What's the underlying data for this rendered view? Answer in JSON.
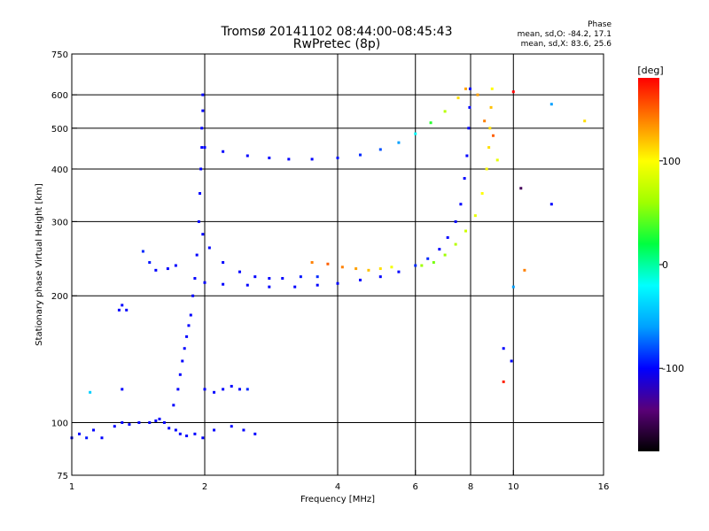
{
  "chart_data": {
    "type": "scatter",
    "title": "Tromsø 20141102 08:44:00-08:45:43",
    "subtitle": "RwPretec (8p)",
    "xlabel": "Frequency [MHz]",
    "ylabel": "Stationary phase Virtual Height [km]",
    "x_scale": "log",
    "y_scale": "log",
    "xlim": [
      1,
      16
    ],
    "ylim": [
      75,
      750
    ],
    "x_ticks": [
      1,
      2,
      4,
      6,
      8,
      10,
      16
    ],
    "x_tick_labels": [
      "1",
      "2",
      "4",
      "6",
      "8",
      "10",
      "16"
    ],
    "y_ticks": [
      75,
      100,
      200,
      300,
      400,
      500,
      600,
      750
    ],
    "y_tick_labels": [
      "75",
      "100",
      "200",
      "300",
      "400",
      "500",
      "600",
      "750"
    ],
    "grid": true,
    "stats": {
      "heading": "Phase",
      "o_line": "mean, sd,O: -84.2, 17.1",
      "x_line": "mean, sd,X: 83.6, 25.6"
    },
    "colorbar": {
      "label": "[deg]",
      "range": [
        -180,
        180
      ],
      "ticks": [
        100,
        0,
        -100
      ],
      "tick_labels": [
        "100",
        "0",
        "-100"
      ],
      "colors": [
        "#000000",
        "#5a0078",
        "#0000ff",
        "#00a0ff",
        "#00ffff",
        "#00ff40",
        "#a0ff00",
        "#ffff00",
        "#ff8000",
        "#ff0000"
      ]
    },
    "series": [
      {
        "points": [
          [
            1.0,
            92,
            -100
          ],
          [
            1.04,
            94,
            -100
          ],
          [
            1.08,
            92,
            -95
          ],
          [
            1.12,
            96,
            -100
          ],
          [
            1.17,
            92,
            -100
          ],
          [
            1.25,
            98,
            -100
          ],
          [
            1.3,
            100,
            -100
          ],
          [
            1.35,
            99,
            -100
          ],
          [
            1.42,
            100,
            -100
          ],
          [
            1.5,
            100,
            -100
          ],
          [
            1.55,
            101,
            -100
          ],
          [
            1.58,
            102,
            -100
          ],
          [
            1.62,
            100,
            -100
          ],
          [
            1.66,
            97,
            -100
          ],
          [
            1.72,
            96,
            -100
          ],
          [
            1.76,
            94,
            -100
          ],
          [
            1.82,
            93,
            -100
          ],
          [
            1.9,
            94,
            -100
          ],
          [
            1.98,
            92,
            -100
          ],
          [
            2.1,
            96,
            -100
          ],
          [
            2.3,
            98,
            -100
          ],
          [
            2.45,
            96,
            -100
          ],
          [
            2.6,
            94,
            -100
          ]
        ]
      },
      {
        "points": [
          [
            1.7,
            110,
            -100
          ],
          [
            1.74,
            120,
            -100
          ],
          [
            1.76,
            130,
            -100
          ],
          [
            1.78,
            140,
            -100
          ],
          [
            1.8,
            150,
            -100
          ],
          [
            1.82,
            160,
            -100
          ],
          [
            1.84,
            170,
            -100
          ],
          [
            1.86,
            180,
            -100
          ],
          [
            1.88,
            200,
            -100
          ],
          [
            1.9,
            220,
            -100
          ],
          [
            1.92,
            250,
            -100
          ],
          [
            1.94,
            300,
            -100
          ],
          [
            1.95,
            350,
            -100
          ],
          [
            1.96,
            400,
            -100
          ],
          [
            1.97,
            450,
            -100
          ],
          [
            1.97,
            500,
            -100
          ],
          [
            1.98,
            550,
            -100
          ],
          [
            1.98,
            600,
            -100
          ]
        ]
      },
      {
        "points": [
          [
            1.45,
            255,
            -90
          ],
          [
            1.5,
            240,
            -95
          ],
          [
            1.55,
            230,
            -100
          ],
          [
            1.65,
            232,
            -100
          ],
          [
            1.72,
            236,
            -100
          ],
          [
            1.98,
            280,
            -100
          ],
          [
            2.05,
            260,
            -100
          ],
          [
            2.2,
            240,
            -100
          ],
          [
            2.4,
            228,
            -100
          ],
          [
            2.6,
            222,
            -100
          ],
          [
            2.8,
            220,
            -100
          ],
          [
            3.0,
            220,
            -100
          ],
          [
            3.3,
            222,
            -95
          ],
          [
            3.6,
            222,
            -90
          ]
        ]
      },
      {
        "points": [
          [
            2.0,
            215,
            -100
          ],
          [
            2.2,
            213,
            -100
          ],
          [
            2.5,
            212,
            -100
          ],
          [
            2.8,
            210,
            -100
          ],
          [
            3.2,
            210,
            -100
          ],
          [
            3.6,
            212,
            -100
          ],
          [
            4.0,
            214,
            -100
          ],
          [
            4.5,
            218,
            -100
          ],
          [
            5.0,
            222,
            -100
          ],
          [
            5.5,
            228,
            -100
          ],
          [
            6.0,
            236,
            -90
          ],
          [
            6.4,
            245,
            -90
          ],
          [
            6.8,
            258,
            -100
          ],
          [
            7.1,
            275,
            -100
          ],
          [
            7.4,
            300,
            -100
          ],
          [
            7.6,
            330,
            -100
          ],
          [
            7.75,
            380,
            -100
          ],
          [
            7.85,
            430,
            -100
          ],
          [
            7.92,
            500,
            -100
          ],
          [
            7.96,
            560,
            -100
          ],
          [
            7.98,
            620,
            -100
          ]
        ]
      },
      {
        "points": [
          [
            3.5,
            240,
            140
          ],
          [
            3.8,
            238,
            150
          ],
          [
            4.1,
            234,
            140
          ],
          [
            4.4,
            232,
            130
          ],
          [
            4.7,
            230,
            120
          ],
          [
            5.0,
            232,
            110
          ],
          [
            5.3,
            234,
            95
          ]
        ]
      },
      {
        "points": [
          [
            2.0,
            450,
            -100
          ],
          [
            2.2,
            440,
            -100
          ],
          [
            2.5,
            430,
            -100
          ],
          [
            2.8,
            425,
            -100
          ],
          [
            3.1,
            422,
            -100
          ],
          [
            3.5,
            422,
            -100
          ],
          [
            4.0,
            425,
            -95
          ],
          [
            4.5,
            432,
            -90
          ],
          [
            5.0,
            445,
            -80
          ],
          [
            5.5,
            462,
            -60
          ],
          [
            6.0,
            485,
            -20
          ],
          [
            6.5,
            515,
            30
          ],
          [
            7.0,
            548,
            70
          ],
          [
            7.5,
            590,
            110
          ],
          [
            7.8,
            620,
            130
          ]
        ]
      },
      {
        "points": [
          [
            6.2,
            236,
            60
          ],
          [
            6.6,
            240,
            50
          ],
          [
            7.0,
            250,
            60
          ],
          [
            7.4,
            265,
            70
          ],
          [
            7.8,
            285,
            80
          ],
          [
            8.2,
            310,
            90
          ],
          [
            8.5,
            350,
            100
          ],
          [
            8.7,
            400,
            100
          ],
          [
            8.8,
            450,
            110
          ],
          [
            8.85,
            500,
            110
          ],
          [
            8.9,
            560,
            120
          ],
          [
            8.95,
            620,
            100
          ],
          [
            8.3,
            600,
            130
          ],
          [
            8.6,
            520,
            140
          ],
          [
            9.0,
            480,
            150
          ],
          [
            9.2,
            420,
            90
          ]
        ]
      },
      {
        "points": [
          [
            2.0,
            120,
            -100
          ],
          [
            2.1,
            118,
            -100
          ],
          [
            2.2,
            120,
            -100
          ],
          [
            2.3,
            122,
            -100
          ],
          [
            2.4,
            120,
            -100
          ],
          [
            2.5,
            120,
            -90
          ]
        ]
      },
      {
        "points": [
          [
            1.3,
            190,
            -100
          ],
          [
            1.33,
            185,
            -100
          ],
          [
            1.28,
            185,
            -100
          ],
          [
            1.3,
            120,
            -100
          ],
          [
            1.1,
            118,
            -40
          ],
          [
            9.5,
            150,
            -100
          ],
          [
            9.9,
            140,
            -100
          ],
          [
            9.5,
            125,
            170
          ],
          [
            10.0,
            210,
            -60
          ],
          [
            10.6,
            230,
            140
          ],
          [
            10.4,
            360,
            -150
          ],
          [
            12.2,
            330,
            -100
          ],
          [
            12.2,
            570,
            -60
          ],
          [
            14.5,
            520,
            110
          ],
          [
            10.0,
            610,
            180
          ]
        ]
      }
    ]
  }
}
